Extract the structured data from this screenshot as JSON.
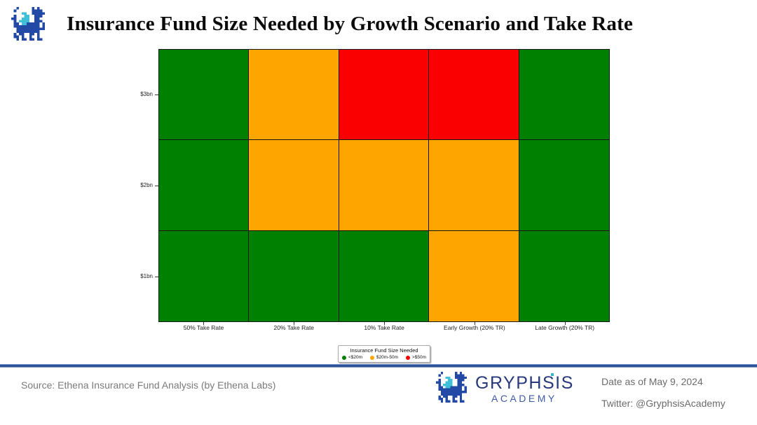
{
  "header": {
    "title": "Insurance Fund Size Needed by Growth Scenario and Take Rate",
    "logo_icon": "gryphsis-dragon-icon"
  },
  "chart_data": {
    "type": "heatmap",
    "title": "Insurance Fund Size Needed by Growth Scenario and Take Rate",
    "x_categories": [
      "50% Take Rate",
      "20% Take Rate",
      "10% Take Rate",
      "Early Growth (20% TR)",
      "Late Growth (20% TR)"
    ],
    "y_categories": [
      "$3bn",
      "$2bn",
      "$1bn"
    ],
    "cells": [
      [
        "<$20m",
        "$20m-50m",
        ">$50m",
        ">$50m",
        "<$20m"
      ],
      [
        "<$20m",
        "$20m-50m",
        "$20m-50m",
        "$20m-50m",
        "<$20m"
      ],
      [
        "<$20m",
        "<$20m",
        "<$20m",
        "$20m-50m",
        "<$20m"
      ]
    ],
    "colors": {
      "<$20m": "#008000",
      "$20m-50m": "#FFA500",
      ">$50m": "#FA0000"
    },
    "legend": {
      "title": "Insurance Fund Size Needed",
      "position": "bottom-center",
      "entries": [
        {
          "label": "<$20m",
          "color": "#008000"
        },
        {
          "label": "$20m-50m",
          "color": "#FFA500"
        },
        {
          "label": ">$50m",
          "color": "#FA0000"
        }
      ]
    },
    "grid": false
  },
  "footer": {
    "source": "Source: Ethena Insurance Fund Analysis (by Ethena Labs)",
    "brand": "GRYPHSIS",
    "brand_sub": "ACADEMY",
    "date": "Date as of May 9, 2024",
    "twitter": "Twitter: @GryphsisAcademy",
    "colors": {
      "divider_blue": "#2c55a0",
      "brand_navy": "#27397a",
      "brand_blue": "#3d5aa8",
      "accent_teal": "#35b6c9"
    }
  }
}
